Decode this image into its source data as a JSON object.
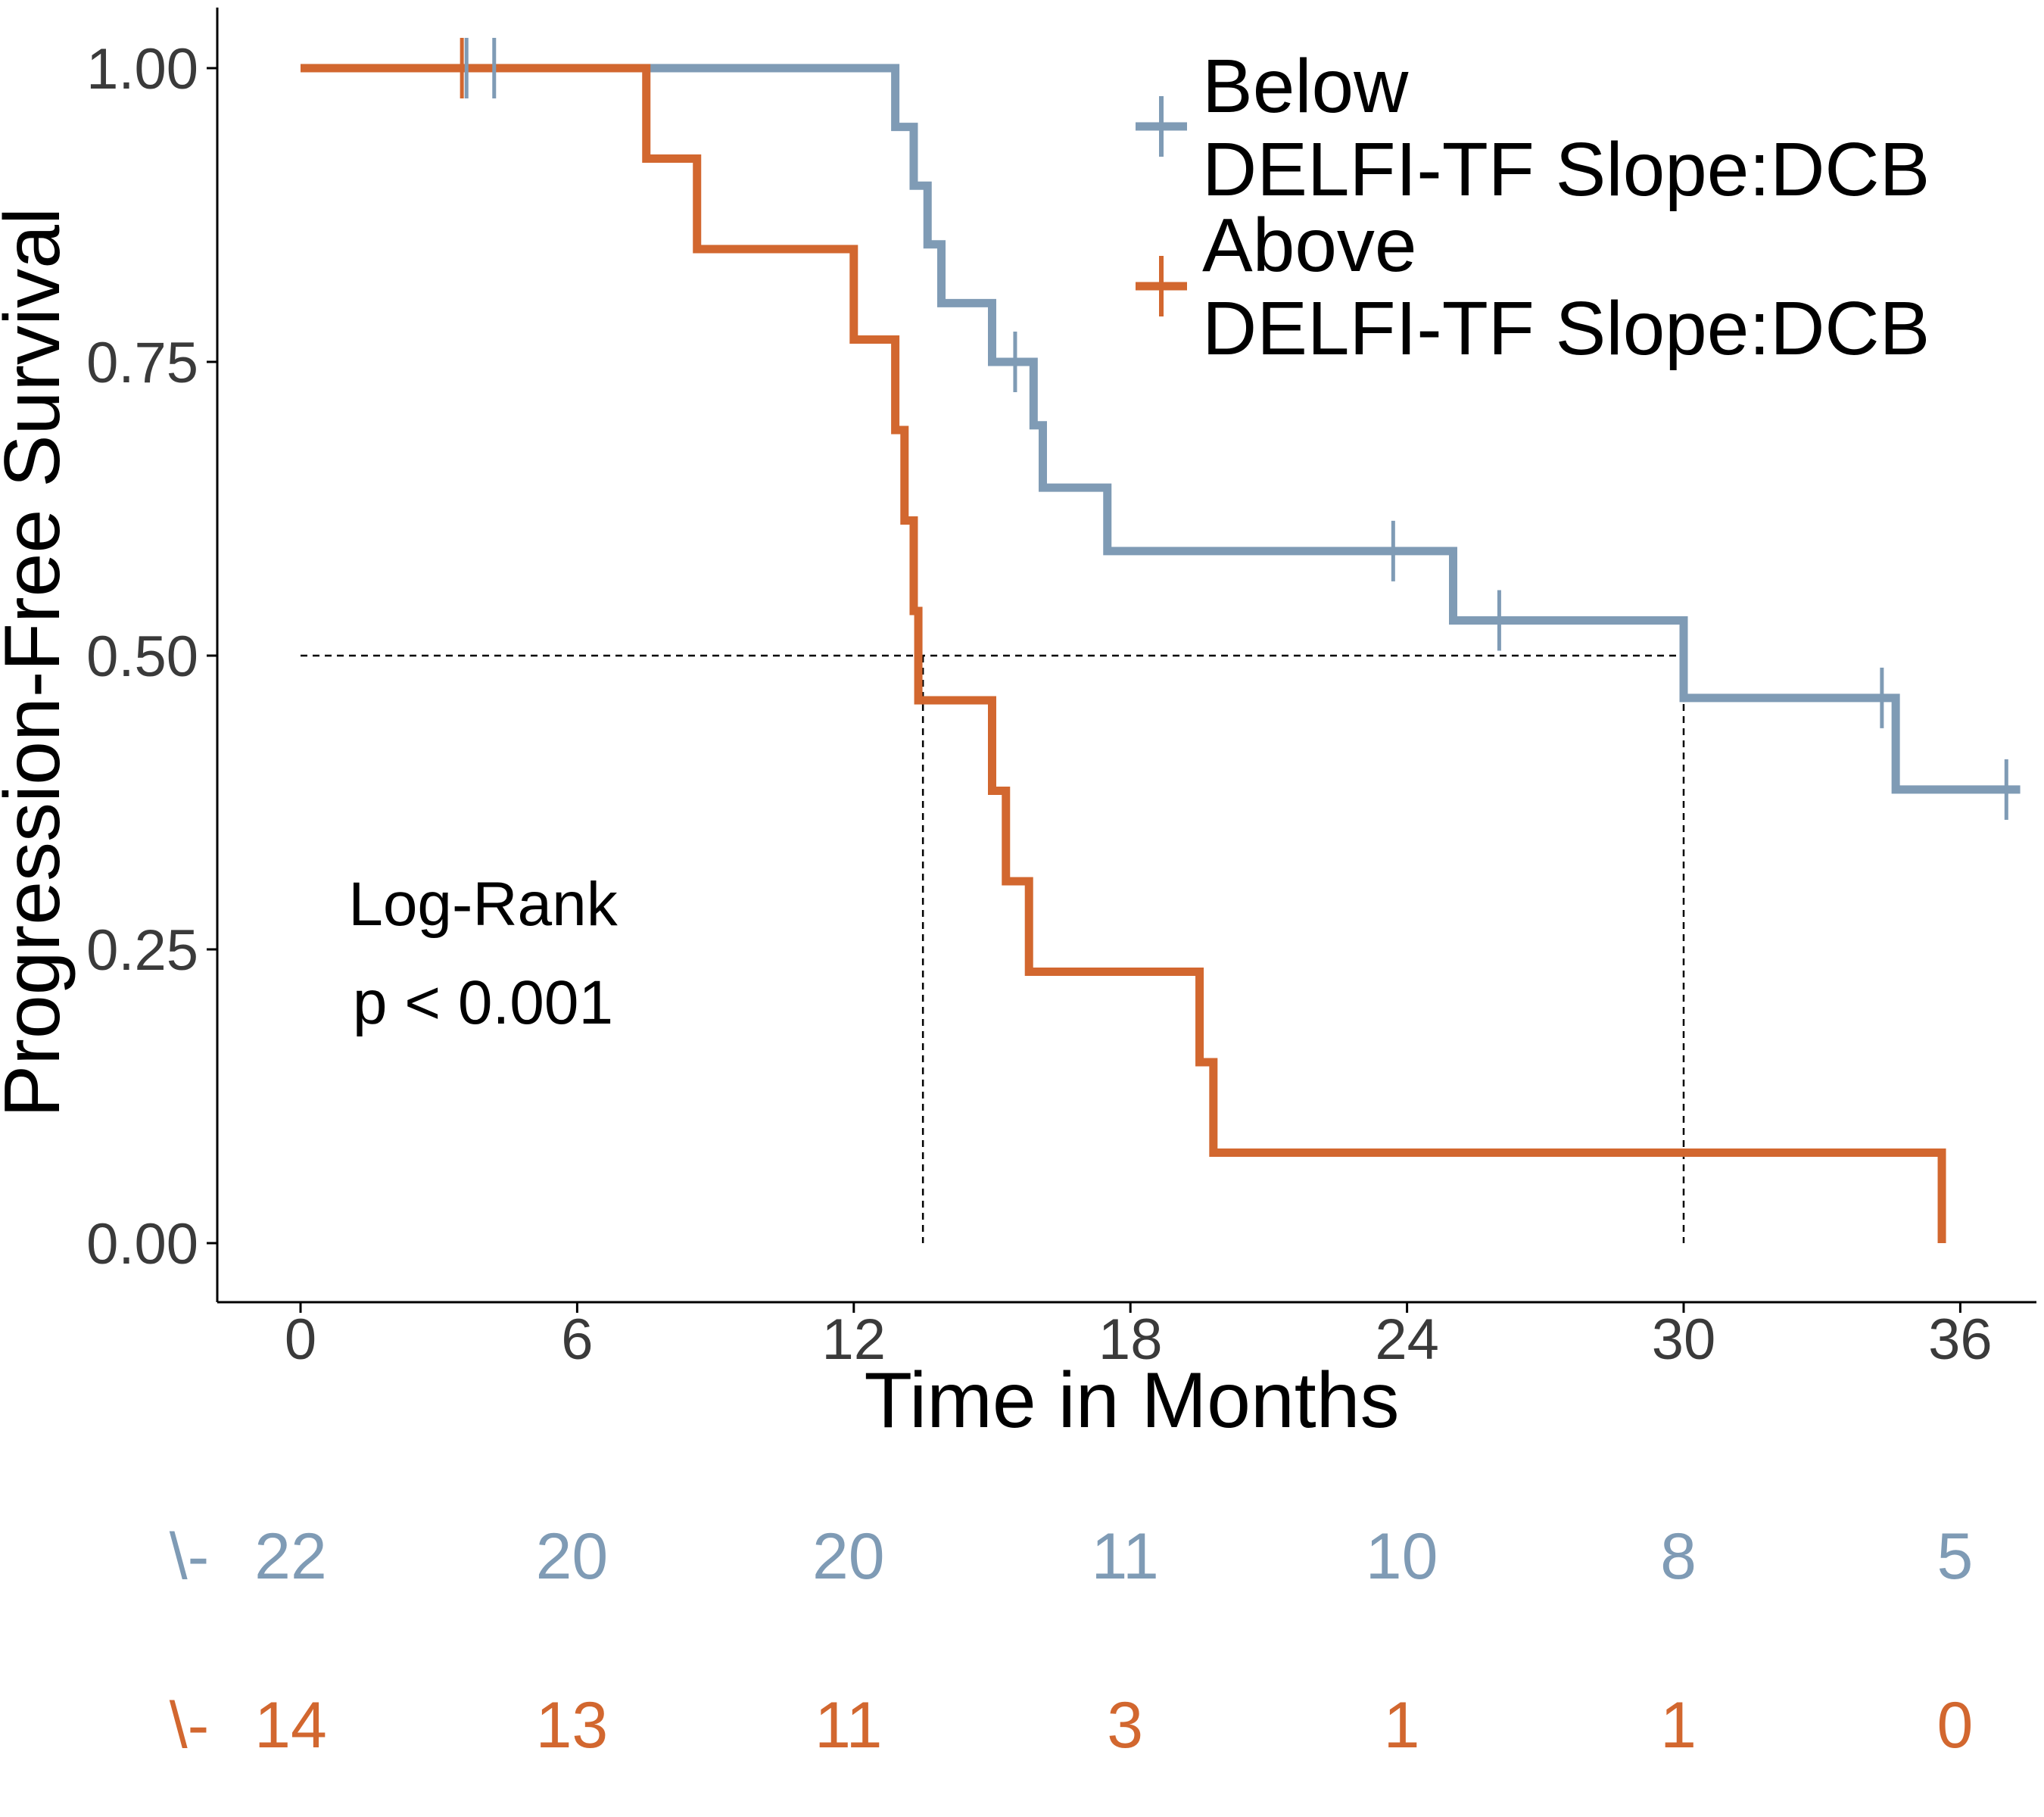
{
  "chart_data": {
    "type": "line",
    "subtype": "kaplan-meier",
    "xlabel": "Time in Months",
    "ylabel": "Progression-Free Survival",
    "xlim": [
      -2,
      39
    ],
    "ylim": [
      -0.05,
      1.05
    ],
    "x_ticks": [
      "0",
      "6",
      "12",
      "18",
      "24",
      "30",
      "36"
    ],
    "y_ticks": [
      "0.00",
      "0.25",
      "0.50",
      "0.75",
      "1.00"
    ],
    "grid": false,
    "legend_position": "top-right",
    "legend": [
      {
        "line1": "Below",
        "line2": "DELFI-TF Slope:DCB",
        "color": "#7f9bb5"
      },
      {
        "line1": "Above",
        "line2": "DELFI-TF Slope:DCB",
        "color": "#d2672f"
      }
    ],
    "annotation": {
      "line1": "Log-Rank",
      "line2": "p < 0.001"
    },
    "median_reference": {
      "survival": 0.5,
      "medians": [
        13.5,
        30.0
      ]
    },
    "series": [
      {
        "name": "Below DELFI-TF Slope:DCB",
        "color": "#7f9bb5",
        "steps": [
          [
            0,
            1.0
          ],
          [
            12.9,
            0.95
          ],
          [
            13.3,
            0.9
          ],
          [
            13.6,
            0.85
          ],
          [
            13.9,
            0.8
          ],
          [
            15.0,
            0.75
          ],
          [
            15.9,
            0.696
          ],
          [
            16.1,
            0.643
          ],
          [
            17.5,
            0.589
          ],
          [
            25.0,
            0.53
          ],
          [
            30.0,
            0.464
          ],
          [
            34.6,
            0.386
          ]
        ],
        "end_x": 37.3,
        "censors": [
          [
            3.6,
            1.0
          ],
          [
            4.2,
            1.0
          ],
          [
            15.5,
            0.75
          ],
          [
            23.7,
            0.589
          ],
          [
            26.0,
            0.53
          ],
          [
            34.3,
            0.464
          ],
          [
            37.0,
            0.386
          ]
        ]
      },
      {
        "name": "Above DELFI-TF Slope:DCB",
        "color": "#d2672f",
        "steps": [
          [
            0,
            1.0
          ],
          [
            7.5,
            0.923
          ],
          [
            8.6,
            0.846
          ],
          [
            12.0,
            0.769
          ],
          [
            12.9,
            0.692
          ],
          [
            13.1,
            0.615
          ],
          [
            13.3,
            0.538
          ],
          [
            13.4,
            0.462
          ],
          [
            15.0,
            0.385
          ],
          [
            15.3,
            0.308
          ],
          [
            15.8,
            0.231
          ],
          [
            19.5,
            0.154
          ],
          [
            19.8,
            0.077
          ],
          [
            35.6,
            0.0
          ]
        ],
        "end_x": 35.6,
        "censors": [
          [
            3.5,
            1.0
          ]
        ]
      }
    ],
    "risk_table": {
      "times": [
        0,
        6,
        12,
        18,
        24,
        30,
        36
      ],
      "rows": [
        {
          "label": "\\-",
          "color": "#7f9bb5",
          "counts": [
            "22",
            "20",
            "20",
            "11",
            "10",
            "8",
            "5"
          ]
        },
        {
          "label": "\\-",
          "color": "#d2672f",
          "counts": [
            "14",
            "13",
            "11",
            "3",
            "1",
            "1",
            "0"
          ]
        }
      ]
    }
  }
}
